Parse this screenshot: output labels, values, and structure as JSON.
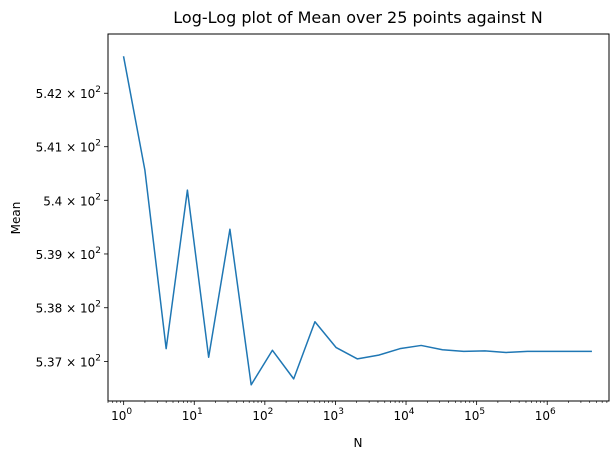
{
  "chart_data": {
    "type": "line",
    "title": "Log-Log plot of Mean over 25 points against N",
    "xlabel": "N",
    "ylabel": "Mean",
    "xscale": "log",
    "yscale": "log",
    "xlim": [
      0.6,
      7500000
    ],
    "ylim": [
      536.27,
      543.11
    ],
    "grid": false,
    "legend": "none",
    "line_color": "#1f77b4",
    "x_ticks": [
      {
        "value": 1,
        "base": "10",
        "exp": "0"
      },
      {
        "value": 10,
        "base": "10",
        "exp": "1"
      },
      {
        "value": 100,
        "base": "10",
        "exp": "2"
      },
      {
        "value": 1000,
        "base": "10",
        "exp": "3"
      },
      {
        "value": 10000,
        "base": "10",
        "exp": "4"
      },
      {
        "value": 100000,
        "base": "10",
        "exp": "5"
      },
      {
        "value": 1000000,
        "base": "10",
        "exp": "6"
      }
    ],
    "y_ticks": [
      {
        "value": 537,
        "mantissa": "5.37",
        "exp": "2"
      },
      {
        "value": 538,
        "mantissa": "5.38",
        "exp": "2"
      },
      {
        "value": 539,
        "mantissa": "5.39",
        "exp": "2"
      },
      {
        "value": 540,
        "mantissa": "5.4",
        "exp": "2"
      },
      {
        "value": 541,
        "mantissa": "5.41",
        "exp": "2"
      },
      {
        "value": 542,
        "mantissa": "5.42",
        "exp": "2"
      }
    ],
    "times_symbol": "×",
    "x": [
      1,
      2,
      4,
      8,
      16,
      32,
      64,
      128,
      256,
      512,
      1024,
      2048,
      4096,
      8192,
      16384,
      32768,
      65536,
      131072,
      262144,
      524288,
      1048576,
      2097152,
      4194304
    ],
    "y": [
      542.68,
      540.56,
      537.24,
      540.19,
      537.08,
      539.46,
      536.57,
      537.21,
      536.68,
      537.74,
      537.26,
      537.05,
      537.12,
      537.24,
      537.3,
      537.22,
      537.19,
      537.2,
      537.17,
      537.19,
      537.19,
      537.19,
      537.19
    ]
  }
}
